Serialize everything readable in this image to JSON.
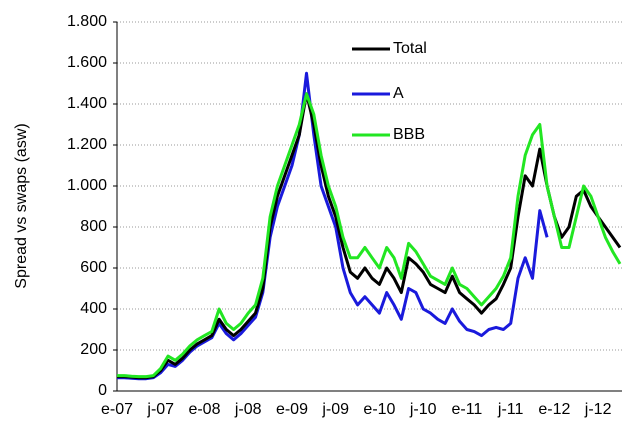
{
  "chart_data": {
    "type": "line",
    "y_label": "Spread vs swaps (asw)",
    "categories": [
      "e-07",
      null,
      null,
      null,
      null,
      null,
      "j-07",
      null,
      null,
      null,
      null,
      null,
      "e-08",
      null,
      null,
      null,
      null,
      null,
      "j-08",
      null,
      null,
      null,
      null,
      null,
      "e-09",
      null,
      null,
      null,
      null,
      null,
      "j-09",
      null,
      null,
      null,
      null,
      null,
      "e-10",
      null,
      null,
      null,
      null,
      null,
      "j-10",
      null,
      null,
      null,
      null,
      null,
      "e-11",
      null,
      null,
      null,
      null,
      null,
      "j-11",
      null,
      null,
      null,
      null,
      null,
      "e-12",
      null,
      null,
      null,
      null,
      null,
      "j-12",
      null,
      null,
      null
    ],
    "series": [
      {
        "name": "Total",
        "color": "#000000",
        "values": [
          70,
          70,
          68,
          65,
          65,
          70,
          100,
          150,
          130,
          160,
          200,
          230,
          250,
          270,
          350,
          300,
          270,
          300,
          340,
          380,
          500,
          800,
          950,
          1050,
          1150,
          1250,
          1450,
          1300,
          1100,
          950,
          850,
          700,
          580,
          550,
          600,
          550,
          520,
          600,
          550,
          480,
          650,
          620,
          580,
          520,
          500,
          480,
          560,
          480,
          450,
          420,
          380,
          420,
          450,
          520,
          600,
          850,
          1050,
          1000,
          1180,
          1000,
          850,
          750,
          800,
          950,
          980,
          900,
          850,
          800,
          750,
          700
        ]
      },
      {
        "name": "A",
        "color": "#1a1adc",
        "values": [
          65,
          65,
          62,
          60,
          60,
          65,
          90,
          130,
          120,
          150,
          190,
          220,
          240,
          260,
          330,
          280,
          250,
          280,
          320,
          360,
          480,
          750,
          900,
          1000,
          1100,
          1250,
          1550,
          1250,
          1000,
          900,
          800,
          600,
          480,
          420,
          460,
          420,
          380,
          480,
          420,
          350,
          500,
          480,
          400,
          380,
          350,
          330,
          400,
          340,
          300,
          290,
          270,
          300,
          310,
          300,
          330,
          550,
          650,
          550,
          880,
          750,
          null,
          null,
          null,
          null,
          null,
          null,
          null,
          null,
          null,
          null
        ]
      },
      {
        "name": "BBB",
        "color": "#22e622",
        "values": [
          75,
          75,
          72,
          70,
          70,
          75,
          110,
          170,
          150,
          180,
          220,
          250,
          270,
          290,
          400,
          330,
          300,
          330,
          380,
          420,
          550,
          850,
          1000,
          1100,
          1200,
          1300,
          1450,
          1350,
          1150,
          1000,
          900,
          750,
          650,
          650,
          700,
          650,
          600,
          700,
          650,
          550,
          720,
          680,
          620,
          560,
          540,
          520,
          600,
          520,
          500,
          460,
          420,
          460,
          500,
          560,
          650,
          950,
          1150,
          1250,
          1300,
          1000,
          850,
          700,
          700,
          850,
          1000,
          950,
          850,
          750,
          680,
          620
        ]
      }
    ],
    "ylim": [
      0,
      1800
    ],
    "yticks": [
      0,
      200,
      400,
      600,
      800,
      {
        "value": 1000,
        "label": "1.000"
      },
      {
        "value": 1200,
        "label": "1.200"
      },
      {
        "value": 1400,
        "label": "1.400"
      },
      {
        "value": 1600,
        "label": "1.600"
      },
      {
        "value": 1800,
        "label": "1.800"
      }
    ],
    "grid": true
  }
}
